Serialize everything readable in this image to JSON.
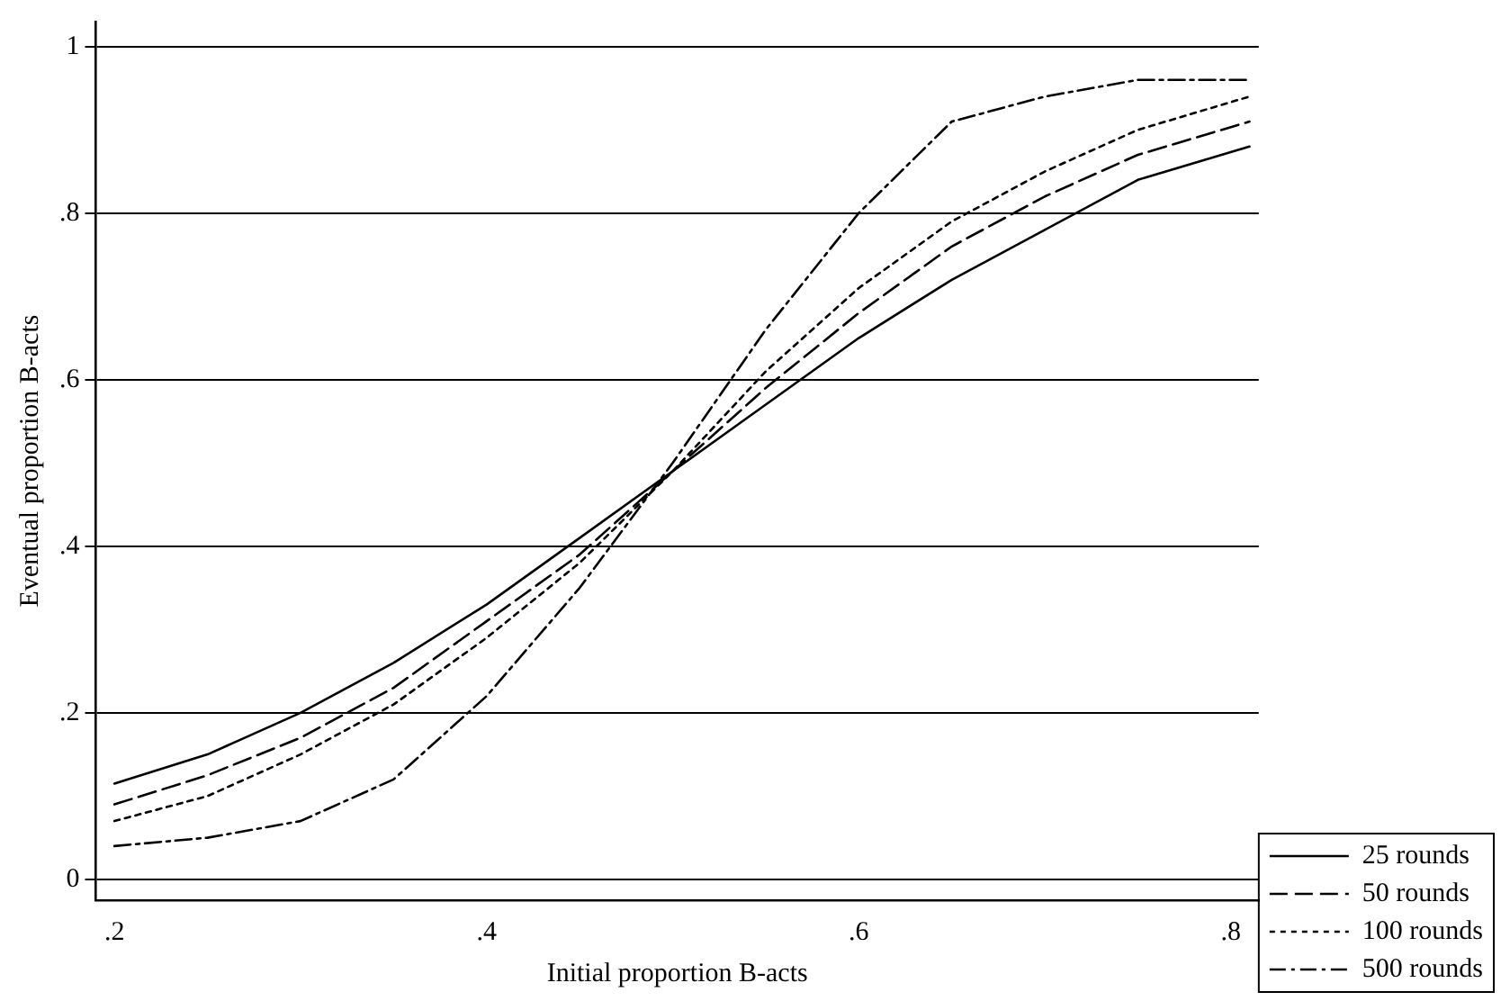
{
  "chart_data": {
    "type": "line",
    "xlabel": "Initial proportion B-acts",
    "ylabel": "Eventual proportion B-acts",
    "x": [
      0.2,
      0.25,
      0.3,
      0.35,
      0.4,
      0.45,
      0.5,
      0.55,
      0.6,
      0.65,
      0.7,
      0.75,
      0.81
    ],
    "series": [
      {
        "name": "25 rounds",
        "color": "#000000",
        "line_style": "solid",
        "values": [
          0.115,
          0.15,
          0.2,
          0.26,
          0.33,
          0.41,
          0.49,
          0.57,
          0.65,
          0.72,
          0.78,
          0.84,
          0.88
        ]
      },
      {
        "name": "50 rounds",
        "color": "#000000",
        "line_style": "dashed",
        "values": [
          0.09,
          0.125,
          0.17,
          0.23,
          0.31,
          0.39,
          0.49,
          0.59,
          0.68,
          0.76,
          0.82,
          0.87,
          0.91
        ]
      },
      {
        "name": "100 rounds",
        "color": "#000000",
        "line_style": "dotted",
        "values": [
          0.07,
          0.1,
          0.15,
          0.21,
          0.29,
          0.38,
          0.49,
          0.61,
          0.71,
          0.79,
          0.85,
          0.9,
          0.94
        ]
      },
      {
        "name": "500 rounds",
        "color": "#000000",
        "line_style": "dashdot",
        "values": [
          0.04,
          0.05,
          0.07,
          0.12,
          0.22,
          0.35,
          0.5,
          0.66,
          0.8,
          0.91,
          0.94,
          0.96,
          0.96
        ]
      }
    ],
    "xlim": [
      0.19,
      0.815
    ],
    "xticks": [
      {
        "value": 0.2,
        "label": ".2"
      },
      {
        "value": 0.4,
        "label": ".4"
      },
      {
        "value": 0.6,
        "label": ".6"
      },
      {
        "value": 0.8,
        "label": ".8"
      }
    ],
    "ylim": [
      -0.025,
      1.03
    ],
    "yticks": [
      0,
      {
        "value": 0.2,
        "label": ".2"
      },
      {
        "value": 0.4,
        "label": ".4"
      },
      {
        "value": 0.6,
        "label": ".6"
      },
      {
        "value": 0.8,
        "label": ".8"
      },
      1
    ],
    "grid": "y",
    "legend": "bottom right",
    "marker": "none"
  }
}
